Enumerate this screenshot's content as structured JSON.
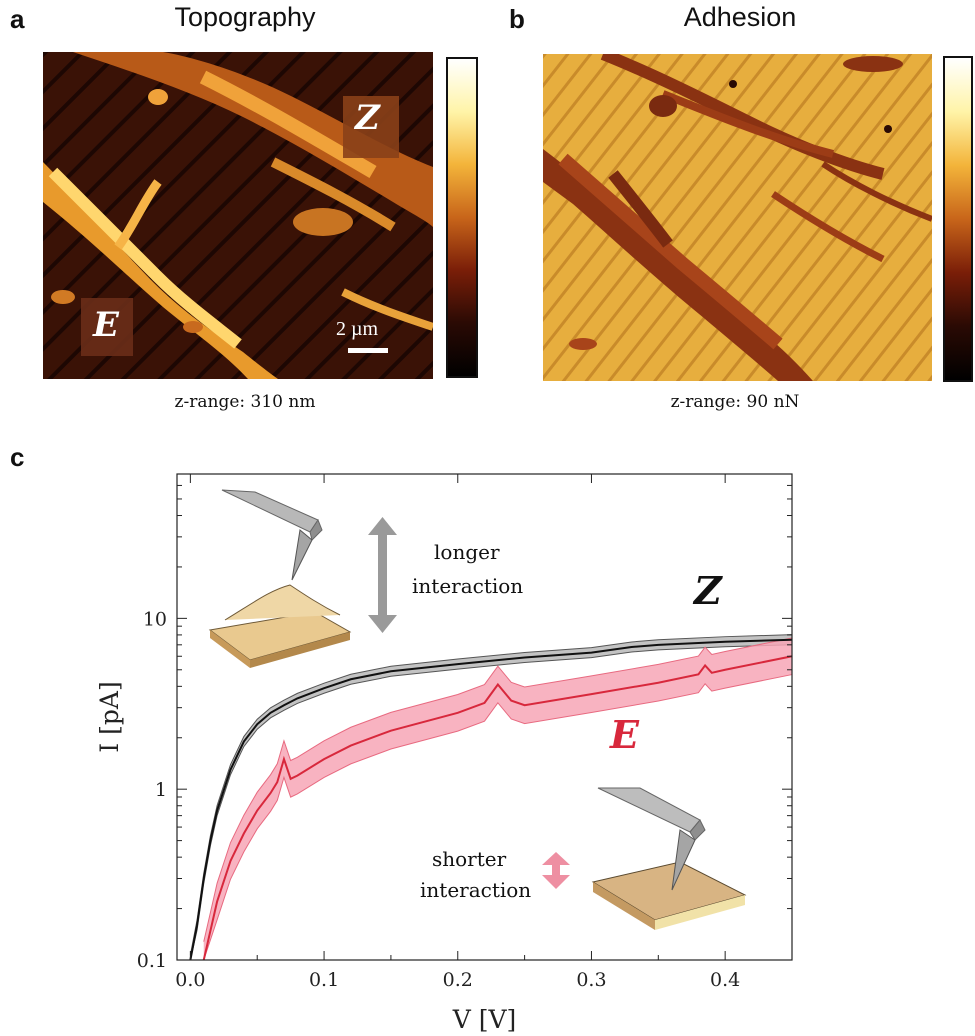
{
  "panel_a": {
    "letter": "a",
    "title": "Topography",
    "z_range": "z-range: 310 nm",
    "labels": {
      "region_z": "Z",
      "region_e": "E"
    },
    "scale_bar": "2 µm",
    "colormap": [
      "#ffffff",
      "#fff4a8",
      "#f3b43a",
      "#c8651a",
      "#7a1e08",
      "#2a0a04",
      "#000000"
    ]
  },
  "panel_b": {
    "letter": "b",
    "title": "Adhesion",
    "z_range": "z-range: 90 nN",
    "colormap": [
      "#ffffff",
      "#fff4a8",
      "#f3b43a",
      "#c8651a",
      "#7a1e08",
      "#2a0a04",
      "#000000"
    ]
  },
  "panel_c": {
    "letter": "c",
    "annotations": {
      "long_1": "longer",
      "long_2": "interaction",
      "short_1": "shorter",
      "short_2": "interaction",
      "label_z": "Z",
      "label_e": "E"
    },
    "colors": {
      "z_line": "#111111",
      "z_band": "#b8b8b8",
      "e_line": "#d8283c",
      "e_band": "#f7a6b6",
      "arrow_long": "#9a9a9a",
      "arrow_short": "#ee8fa2"
    }
  },
  "chart_data": {
    "type": "line",
    "title": "",
    "xlabel": "V [V]",
    "ylabel": "I [pA]",
    "xlim": [
      -0.01,
      0.45
    ],
    "ylim": [
      0.1,
      70
    ],
    "yscale": "log",
    "xticks": [
      0.0,
      0.1,
      0.2,
      0.3,
      0.4
    ],
    "xtick_labels": [
      "0.0",
      "0.1",
      "0.2",
      "0.3",
      "0.4"
    ],
    "yticks": [
      0.1,
      1,
      10
    ],
    "ytick_labels": [
      "0.1",
      "1",
      "10"
    ],
    "series": [
      {
        "name": "Z",
        "x": [
          0.0,
          0.005,
          0.01,
          0.015,
          0.02,
          0.03,
          0.04,
          0.05,
          0.06,
          0.07,
          0.08,
          0.1,
          0.12,
          0.15,
          0.2,
          0.25,
          0.3,
          0.33,
          0.35,
          0.4,
          0.45
        ],
        "y": [
          0.1,
          0.16,
          0.3,
          0.5,
          0.75,
          1.3,
          1.9,
          2.4,
          2.8,
          3.1,
          3.4,
          3.9,
          4.4,
          4.9,
          5.4,
          5.9,
          6.3,
          6.8,
          7.0,
          7.3,
          7.5
        ],
        "band_rel": 0.07
      },
      {
        "name": "E",
        "x": [
          0.01,
          0.02,
          0.03,
          0.04,
          0.05,
          0.06,
          0.065,
          0.07,
          0.075,
          0.08,
          0.1,
          0.12,
          0.15,
          0.2,
          0.22,
          0.23,
          0.24,
          0.25,
          0.3,
          0.35,
          0.38,
          0.385,
          0.39,
          0.4,
          0.45
        ],
        "y": [
          0.1,
          0.22,
          0.38,
          0.55,
          0.75,
          0.95,
          1.1,
          1.5,
          1.15,
          1.2,
          1.5,
          1.8,
          2.2,
          2.8,
          3.2,
          4.1,
          3.3,
          3.1,
          3.6,
          4.2,
          4.7,
          5.3,
          4.8,
          5.0,
          6.0
        ],
        "band_rel": 0.28
      }
    ]
  }
}
